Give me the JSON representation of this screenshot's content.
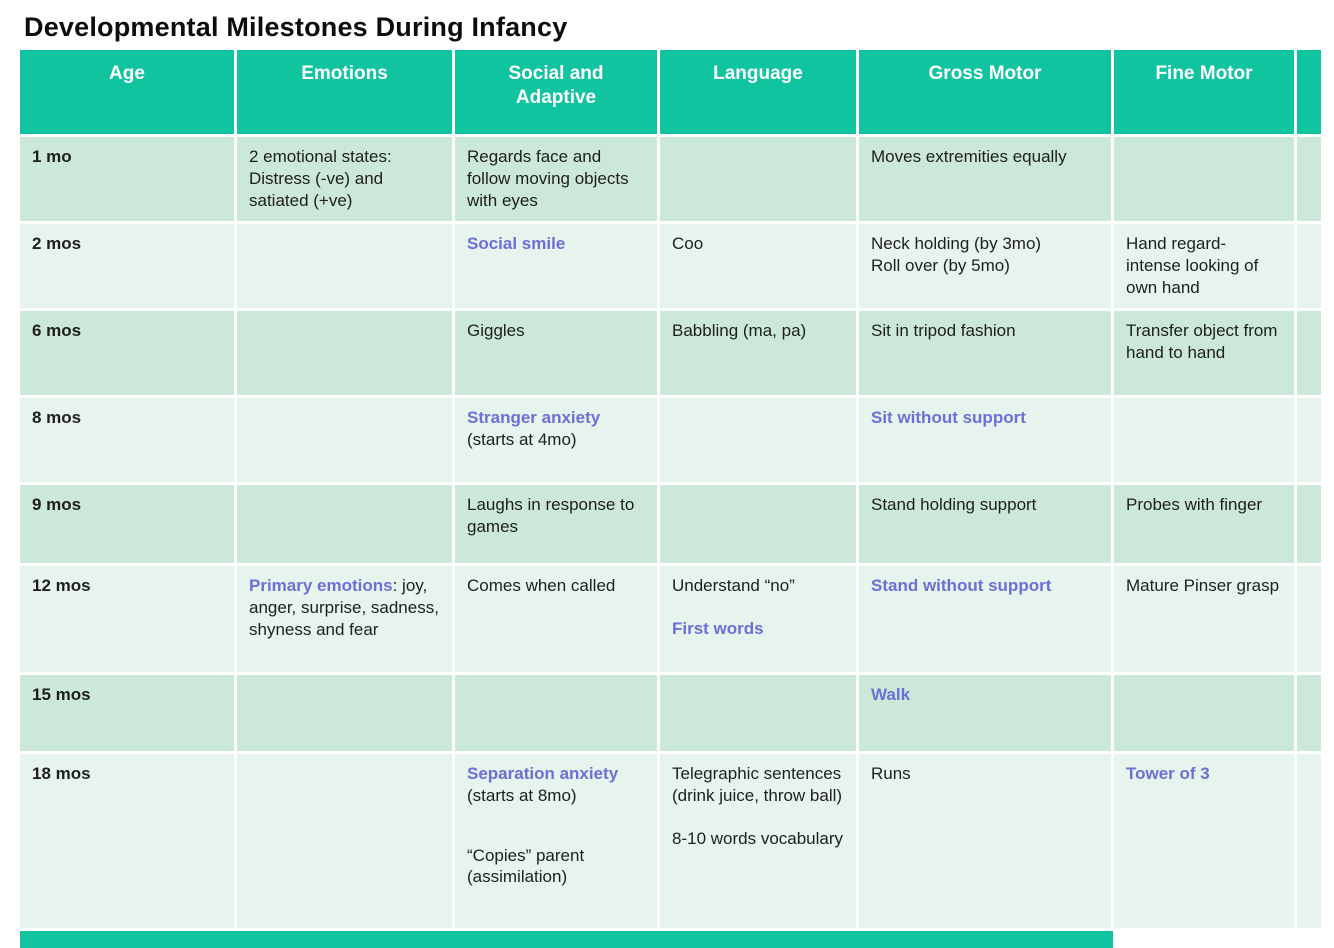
{
  "title": "Developmental Milestones During Infancy",
  "colors": {
    "header_teal": "#11c4a0",
    "row_dark": "#cbe8d8",
    "row_light": "#e6f4ed",
    "highlight_purple": "#6e6ed7",
    "body_text": "#1e1e1e"
  },
  "table": {
    "columns": [
      "Age",
      "Emotions",
      "Social and\nAdaptive",
      "Language",
      "Gross Motor",
      "Fine Motor"
    ],
    "column_keys": [
      "age",
      "emotions",
      "social-adaptive",
      "language",
      "gross-motor",
      "fine-motor"
    ],
    "rows": [
      {
        "age": "1 mo",
        "shade": "dark",
        "cells": {
          "emotions": [
            {
              "spans": [
                {
                  "t": "2 emotional states: Distress (-ve) and satiated (+ve)"
                }
              ]
            }
          ],
          "social": [
            {
              "spans": [
                {
                  "t": "Regards face and follow moving objects with eyes"
                }
              ]
            }
          ],
          "language": [],
          "gross": [
            {
              "spans": [
                {
                  "t": "Moves extremities equally"
                }
              ]
            }
          ],
          "fine": []
        }
      },
      {
        "age": "2 mos",
        "shade": "light",
        "cells": {
          "emotions": [],
          "social": [
            {
              "spans": [
                {
                  "t": "Social smile",
                  "hl": true
                }
              ]
            }
          ],
          "language": [
            {
              "spans": [
                {
                  "t": "Coo"
                }
              ]
            }
          ],
          "gross": [
            {
              "spans": [
                {
                  "t": "Neck holding (by 3mo)"
                }
              ]
            },
            {
              "spans": [
                {
                  "t": "Roll over (by 5mo)"
                }
              ]
            }
          ],
          "fine": [
            {
              "spans": [
                {
                  "t": "Hand regard- intense looking of own hand"
                }
              ]
            }
          ]
        }
      },
      {
        "age": "6 mos",
        "shade": "dark",
        "cells": {
          "emotions": [],
          "social": [
            {
              "spans": [
                {
                  "t": "Giggles"
                }
              ]
            }
          ],
          "language": [
            {
              "spans": [
                {
                  "t": "Babbling (ma, pa)"
                }
              ]
            }
          ],
          "gross": [
            {
              "spans": [
                {
                  "t": "Sit in tripod fashion"
                }
              ]
            }
          ],
          "fine": [
            {
              "spans": [
                {
                  "t": "Transfer object from hand to hand"
                }
              ]
            }
          ]
        }
      },
      {
        "age": "8 mos",
        "shade": "light",
        "cells": {
          "emotions": [],
          "social": [
            {
              "spans": [
                {
                  "t": "Stranger anxiety",
                  "hl": true
                },
                {
                  "t": " (starts at 4mo)"
                }
              ]
            }
          ],
          "language": [],
          "gross": [
            {
              "spans": [
                {
                  "t": "Sit without support",
                  "hl": true
                }
              ]
            }
          ],
          "fine": []
        }
      },
      {
        "age": "9 mos",
        "shade": "dark",
        "cells": {
          "emotions": [],
          "social": [
            {
              "spans": [
                {
                  "t": "Laughs in response to games"
                }
              ]
            }
          ],
          "language": [],
          "gross": [
            {
              "spans": [
                {
                  "t": "Stand holding support"
                }
              ]
            }
          ],
          "fine": [
            {
              "spans": [
                {
                  "t": "Probes with finger"
                }
              ]
            }
          ]
        }
      },
      {
        "age": "12 mos",
        "shade": "light",
        "cells": {
          "emotions": [
            {
              "spans": [
                {
                  "t": "Primary emotions",
                  "hl": true
                },
                {
                  "t": ": joy, anger, surprise, sadness, shyness and fear"
                }
              ]
            }
          ],
          "social": [
            {
              "spans": [
                {
                  "t": "Comes when called"
                }
              ]
            }
          ],
          "language": [
            {
              "spans": [
                {
                  "t": "Understand “no”"
                }
              ]
            },
            {
              "gap": 1,
              "spans": [
                {
                  "t": "First words",
                  "hl": true
                }
              ]
            }
          ],
          "gross": [
            {
              "spans": [
                {
                  "t": "Stand without support",
                  "hl": true
                }
              ]
            }
          ],
          "fine": [
            {
              "spans": [
                {
                  "t": "Mature Pinser grasp"
                }
              ]
            }
          ]
        }
      },
      {
        "age": "15 mos",
        "shade": "dark",
        "cells": {
          "emotions": [],
          "social": [],
          "language": [],
          "gross": [
            {
              "spans": [
                {
                  "t": "Walk",
                  "hl": true
                }
              ]
            }
          ],
          "fine": []
        }
      },
      {
        "age": "18 mos",
        "shade": "light",
        "cells": {
          "emotions": [],
          "social": [
            {
              "spans": [
                {
                  "t": "Separation anxiety",
                  "hl": true
                },
                {
                  "t": " (starts at 8mo)"
                }
              ]
            },
            {
              "gap": 2,
              "spans": [
                {
                  "t": "“Copies” parent (assimilation)"
                }
              ]
            }
          ],
          "language": [
            {
              "spans": [
                {
                  "t": "Telegraphic sentences (drink juice, throw ball)"
                }
              ]
            },
            {
              "gap": 1,
              "spans": [
                {
                  "t": "8-10 words vocabulary"
                }
              ]
            }
          ],
          "gross": [
            {
              "spans": [
                {
                  "t": "Runs"
                }
              ]
            }
          ],
          "fine": [
            {
              "spans": [
                {
                  "t": "Tower of 3",
                  "hl": true
                }
              ]
            }
          ]
        }
      }
    ]
  }
}
